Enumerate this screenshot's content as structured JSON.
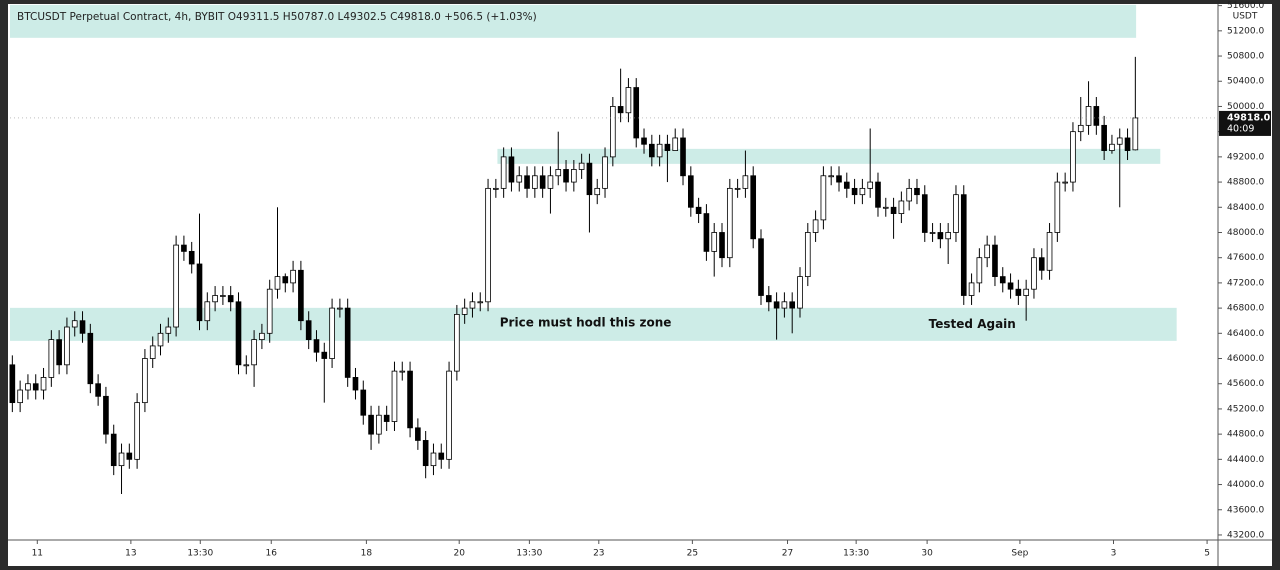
{
  "chart_data": {
    "type": "candlestick",
    "title": "BTCUSDT Perpetual Contract, 4h, BYBIT  O49311.5  H50787.0  L49302.5  C49818.0  +506.5 (+1.03%)",
    "y_axis_unit": "USDT",
    "up_color": "#ffffff",
    "down_color": "#000000",
    "outline_color": "#000000",
    "zone_color": "#cdece7",
    "grid": false,
    "xlim": [
      -0.3,
      154.6
    ],
    "ylim": [
      43120,
      51610
    ],
    "xticks": [
      {
        "value": 3.2,
        "label": "11"
      },
      {
        "value": 15.2,
        "label": "13"
      },
      {
        "value": 24.1,
        "label": "13:30"
      },
      {
        "value": 33.2,
        "label": "16"
      },
      {
        "value": 45.4,
        "label": "18"
      },
      {
        "value": 57.3,
        "label": "20"
      },
      {
        "value": 66.3,
        "label": "13:30"
      },
      {
        "value": 75.2,
        "label": "23"
      },
      {
        "value": 87.2,
        "label": "25"
      },
      {
        "value": 99.4,
        "label": "27"
      },
      {
        "value": 108.2,
        "label": "13:30"
      },
      {
        "value": 117.3,
        "label": "30"
      },
      {
        "value": 129.2,
        "label": "Sep"
      },
      {
        "value": 141.2,
        "label": "3"
      },
      {
        "value": 153.2,
        "label": "5"
      }
    ],
    "yticks": [
      {
        "value": 43200,
        "label": "43200.0"
      },
      {
        "value": 43600,
        "label": "43600.0"
      },
      {
        "value": 44000,
        "label": "44000.0"
      },
      {
        "value": 44400,
        "label": "44400.0"
      },
      {
        "value": 44800,
        "label": "44800.0"
      },
      {
        "value": 45200,
        "label": "45200.0"
      },
      {
        "value": 45600,
        "label": "45600.0"
      },
      {
        "value": 46000,
        "label": "46000.0"
      },
      {
        "value": 46400,
        "label": "46400.0"
      },
      {
        "value": 46800,
        "label": "46800.0"
      },
      {
        "value": 47200,
        "label": "47200.0"
      },
      {
        "value": 47600,
        "label": "47600.0"
      },
      {
        "value": 48000,
        "label": "48000.0"
      },
      {
        "value": 48400,
        "label": "48400.0"
      },
      {
        "value": 48800,
        "label": "48800.0"
      },
      {
        "value": 49200,
        "label": "49200.0"
      },
      {
        "value": 49600,
        "label": "49600.0"
      },
      {
        "value": 50000,
        "label": "50000.0"
      },
      {
        "value": 50400,
        "label": "50400.0"
      },
      {
        "value": 50800,
        "label": "50800.0"
      },
      {
        "value": 51200,
        "label": "51200.0"
      },
      {
        "value": 51600,
        "label": "51600.0"
      }
    ],
    "last_price": {
      "value": 49818,
      "label": "49818.0"
    },
    "countdown": "40:09",
    "zones": [
      {
        "from": -0.3,
        "to": 144.1,
        "low": 51089,
        "high": 51612
      },
      {
        "from": 62.2,
        "to": 147.2,
        "low": 49089,
        "high": 49327
      },
      {
        "from": -0.3,
        "to": 149.3,
        "low": 46280,
        "high": 46804
      }
    ],
    "annotations": [
      {
        "text": "Price must hodl this zone",
        "x": 62.5,
        "y": 46560
      },
      {
        "text": "Tested Again",
        "x": 117.5,
        "y": 46540
      }
    ],
    "series": {
      "open": [
        45900,
        45300,
        45500,
        45600,
        45500,
        45700,
        46300,
        45900,
        46500,
        46600,
        46400,
        45600,
        45400,
        44800,
        44300,
        44500,
        44400,
        45300,
        46000,
        46200,
        46400,
        46500,
        47800,
        47700,
        47500,
        46600,
        46900,
        47000,
        47000,
        46900,
        45900,
        45900,
        46300,
        46400,
        47100,
        47300,
        47200,
        47400,
        46600,
        46300,
        46100,
        46000,
        46800,
        46800,
        45700,
        45500,
        45100,
        44800,
        45100,
        45000,
        45800,
        45800,
        44900,
        44700,
        44300,
        44500,
        44400,
        45800,
        46700,
        46800,
        46900,
        46900,
        48700,
        48700,
        49200,
        48800,
        48900,
        48700,
        48900,
        48700,
        48900,
        49000,
        48800,
        49000,
        49100,
        48600,
        48700,
        49200,
        50000,
        49900,
        50300,
        49500,
        49400,
        49200,
        49400,
        49300,
        49500,
        48900,
        48400,
        48300,
        47700,
        48000,
        47600,
        48700,
        48700,
        48900,
        47900,
        47000,
        46900,
        46800,
        46900,
        46800,
        47300,
        48000,
        48200,
        48900,
        48900,
        48800,
        48700,
        48600,
        48700,
        48800,
        48400,
        48400,
        48300,
        48500,
        48700,
        48600,
        48000,
        48000,
        47900,
        48000,
        48600,
        47000,
        47200,
        47600,
        47800,
        47300,
        47200,
        47100,
        47000,
        47100,
        47600,
        47400,
        48000,
        48800,
        48800,
        49600,
        49700,
        50000,
        49700,
        49300,
        49400,
        49500,
        49311.5
      ],
      "high": [
        46050,
        45650,
        45750,
        45750,
        45850,
        46450,
        46450,
        46650,
        46750,
        46750,
        46550,
        45750,
        45550,
        44950,
        44650,
        44650,
        45450,
        46150,
        46350,
        46550,
        46650,
        47950,
        47950,
        47850,
        48300,
        47050,
        47150,
        47150,
        47150,
        47050,
        46050,
        46450,
        46550,
        47250,
        48400,
        47350,
        47550,
        47550,
        46750,
        46450,
        46250,
        46950,
        46950,
        46950,
        45850,
        45650,
        45250,
        45250,
        45250,
        45950,
        45950,
        45950,
        45050,
        44850,
        44650,
        44650,
        45950,
        46850,
        46950,
        47050,
        47050,
        48850,
        48850,
        49350,
        49350,
        49050,
        49050,
        49050,
        49050,
        49050,
        49600,
        49150,
        49150,
        49250,
        49250,
        48850,
        49350,
        50150,
        50600,
        50450,
        50450,
        49650,
        49550,
        49550,
        49550,
        49650,
        49650,
        49050,
        48550,
        48450,
        48150,
        48150,
        48850,
        48850,
        49300,
        49050,
        48050,
        47150,
        47050,
        47050,
        47050,
        47450,
        48150,
        48350,
        49050,
        49050,
        49050,
        48950,
        48850,
        48850,
        49650,
        48950,
        48550,
        48550,
        48650,
        48850,
        48850,
        48750,
        48150,
        48150,
        48150,
        48750,
        48750,
        47350,
        47750,
        47950,
        47950,
        47450,
        47350,
        47250,
        47250,
        47750,
        47750,
        48150,
        48950,
        48950,
        49750,
        50150,
        50400,
        50150,
        49850,
        49550,
        49650,
        49650,
        50787
      ],
      "low": [
        45150,
        45150,
        45350,
        45350,
        45350,
        45550,
        45750,
        45750,
        46350,
        46250,
        45450,
        45250,
        44650,
        44150,
        43850,
        44250,
        44250,
        45150,
        45850,
        46050,
        46250,
        46350,
        47550,
        47350,
        46450,
        46450,
        46750,
        46850,
        46750,
        45750,
        45750,
        45550,
        46150,
        46250,
        46950,
        47050,
        47050,
        46450,
        46150,
        45950,
        45300,
        45850,
        46650,
        45550,
        45350,
        44950,
        44550,
        44650,
        44850,
        44850,
        45650,
        44750,
        44550,
        44100,
        44150,
        44250,
        44250,
        45650,
        46550,
        46650,
        46750,
        46750,
        48550,
        48550,
        48650,
        48650,
        48550,
        48550,
        48550,
        48300,
        48750,
        48650,
        48650,
        48850,
        48000,
        48450,
        48550,
        49050,
        49750,
        49750,
        49350,
        49250,
        49050,
        49050,
        48800,
        49350,
        48750,
        48250,
        48150,
        47550,
        47300,
        47450,
        47450,
        48550,
        48550,
        47750,
        46850,
        46750,
        46300,
        46650,
        46400,
        46650,
        47150,
        47850,
        48050,
        48750,
        48650,
        48550,
        48450,
        48450,
        48550,
        48250,
        48250,
        47900,
        48150,
        48350,
        48450,
        47850,
        47850,
        47750,
        47500,
        47850,
        46850,
        46850,
        47050,
        47450,
        47150,
        47050,
        46950,
        46850,
        46600,
        46950,
        47250,
        47250,
        47850,
        48650,
        48650,
        49450,
        49550,
        49550,
        49150,
        49250,
        48400,
        49150,
        49302.5
      ],
      "close": [
        45300,
        45500,
        45600,
        45500,
        45700,
        46300,
        45900,
        46500,
        46600,
        46400,
        45600,
        45400,
        44800,
        44300,
        44500,
        44400,
        45300,
        46000,
        46200,
        46400,
        46500,
        47800,
        47700,
        47500,
        46600,
        46900,
        47000,
        47000,
        46900,
        45900,
        45900,
        46300,
        46400,
        47100,
        47300,
        47200,
        47400,
        46600,
        46300,
        46100,
        46000,
        46800,
        46800,
        45700,
        45500,
        45100,
        44800,
        45100,
        45000,
        45800,
        45800,
        44900,
        44700,
        44300,
        44500,
        44400,
        45800,
        46700,
        46800,
        46900,
        46900,
        48700,
        48700,
        49200,
        48800,
        48900,
        48700,
        48900,
        48700,
        48900,
        49000,
        48800,
        49000,
        49100,
        48600,
        48700,
        49200,
        50000,
        49900,
        50300,
        49500,
        49400,
        49200,
        49400,
        49300,
        49500,
        48900,
        48400,
        48300,
        47700,
        48000,
        47600,
        48700,
        48700,
        48900,
        47900,
        47000,
        46900,
        46800,
        46900,
        46800,
        47300,
        48000,
        48200,
        48900,
        48900,
        48800,
        48700,
        48600,
        48700,
        48800,
        48400,
        48400,
        48300,
        48500,
        48700,
        48600,
        48000,
        48000,
        47900,
        48000,
        48600,
        47000,
        47200,
        47600,
        47800,
        47300,
        47200,
        47100,
        47000,
        47100,
        47600,
        47400,
        48000,
        48800,
        48800,
        49600,
        49700,
        50000,
        49700,
        49300,
        49400,
        49500,
        49300,
        49818
      ]
    }
  }
}
